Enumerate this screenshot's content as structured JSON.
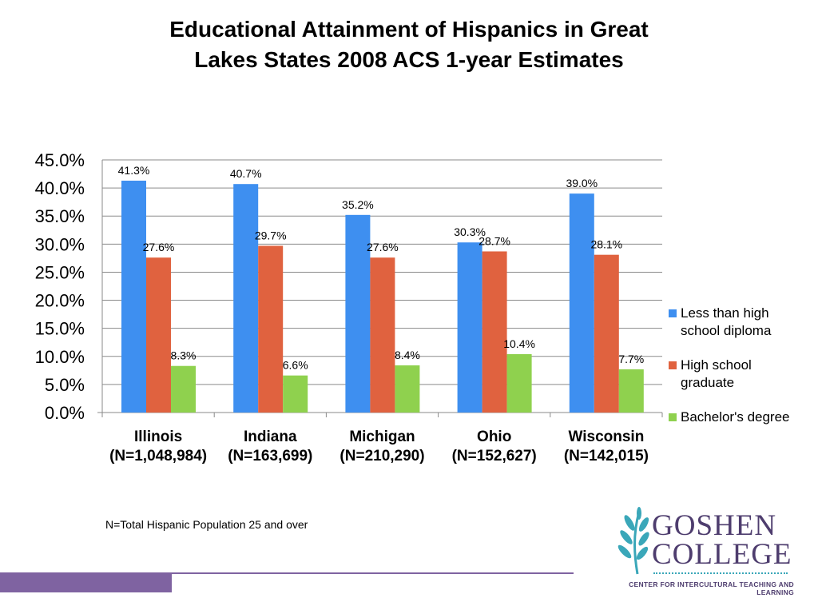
{
  "slide": {
    "title_lines": [
      "Educational Attainment of Hispanics in Great",
      "Lakes States 2008 ACS 1-year Estimates"
    ],
    "footnote": "N=Total Hispanic Population 25 and over",
    "accent_color": "#7f63a1"
  },
  "logo": {
    "line1": "GOSHEN",
    "line2": "COLLEGE",
    "tagline": "CENTER FOR INTERCULTURAL TEACHING AND LEARNING",
    "icon": "leaf-sprig-icon",
    "color": "#4e3d6e",
    "icon_color": "#3aa7b9"
  },
  "chart_data": {
    "type": "bar",
    "title": "",
    "xlabel": "",
    "ylabel": "",
    "ylim": [
      0,
      45
    ],
    "yticks": [
      "0.0%",
      "5.0%",
      "10.0%",
      "15.0%",
      "20.0%",
      "25.0%",
      "30.0%",
      "35.0%",
      "40.0%",
      "45.0%"
    ],
    "grid": true,
    "legend_position": "right",
    "categories": [
      {
        "name": "Illinois",
        "sub": "(N=1,048,984)"
      },
      {
        "name": "Indiana",
        "sub": "(N=163,699)"
      },
      {
        "name": "Michigan",
        "sub": "(N=210,290)"
      },
      {
        "name": "Ohio",
        "sub": "(N=152,627)"
      },
      {
        "name": "Wisconsin",
        "sub": "(N=142,015)"
      }
    ],
    "series": [
      {
        "name_lines": [
          "Less than high",
          "school diploma"
        ],
        "color": "#3e8ff0",
        "values": [
          41.3,
          40.7,
          35.2,
          30.3,
          39.0
        ],
        "labels": [
          "41.3%",
          "40.7%",
          "35.2%",
          "30.3%",
          "39.0%"
        ]
      },
      {
        "name_lines": [
          "High school",
          "graduate"
        ],
        "color": "#e0623f",
        "values": [
          27.6,
          29.7,
          27.6,
          28.7,
          28.1
        ],
        "labels": [
          "27.6%",
          "29.7%",
          "27.6%",
          "28.7%",
          "28.1%"
        ]
      },
      {
        "name_lines": [
          "Bachelor's degree"
        ],
        "color": "#8fd14e",
        "values": [
          8.3,
          6.6,
          8.4,
          10.4,
          7.7
        ],
        "labels": [
          "8.3%",
          "6.6%",
          "8.4%",
          "10.4%",
          "7.7%"
        ]
      }
    ]
  }
}
